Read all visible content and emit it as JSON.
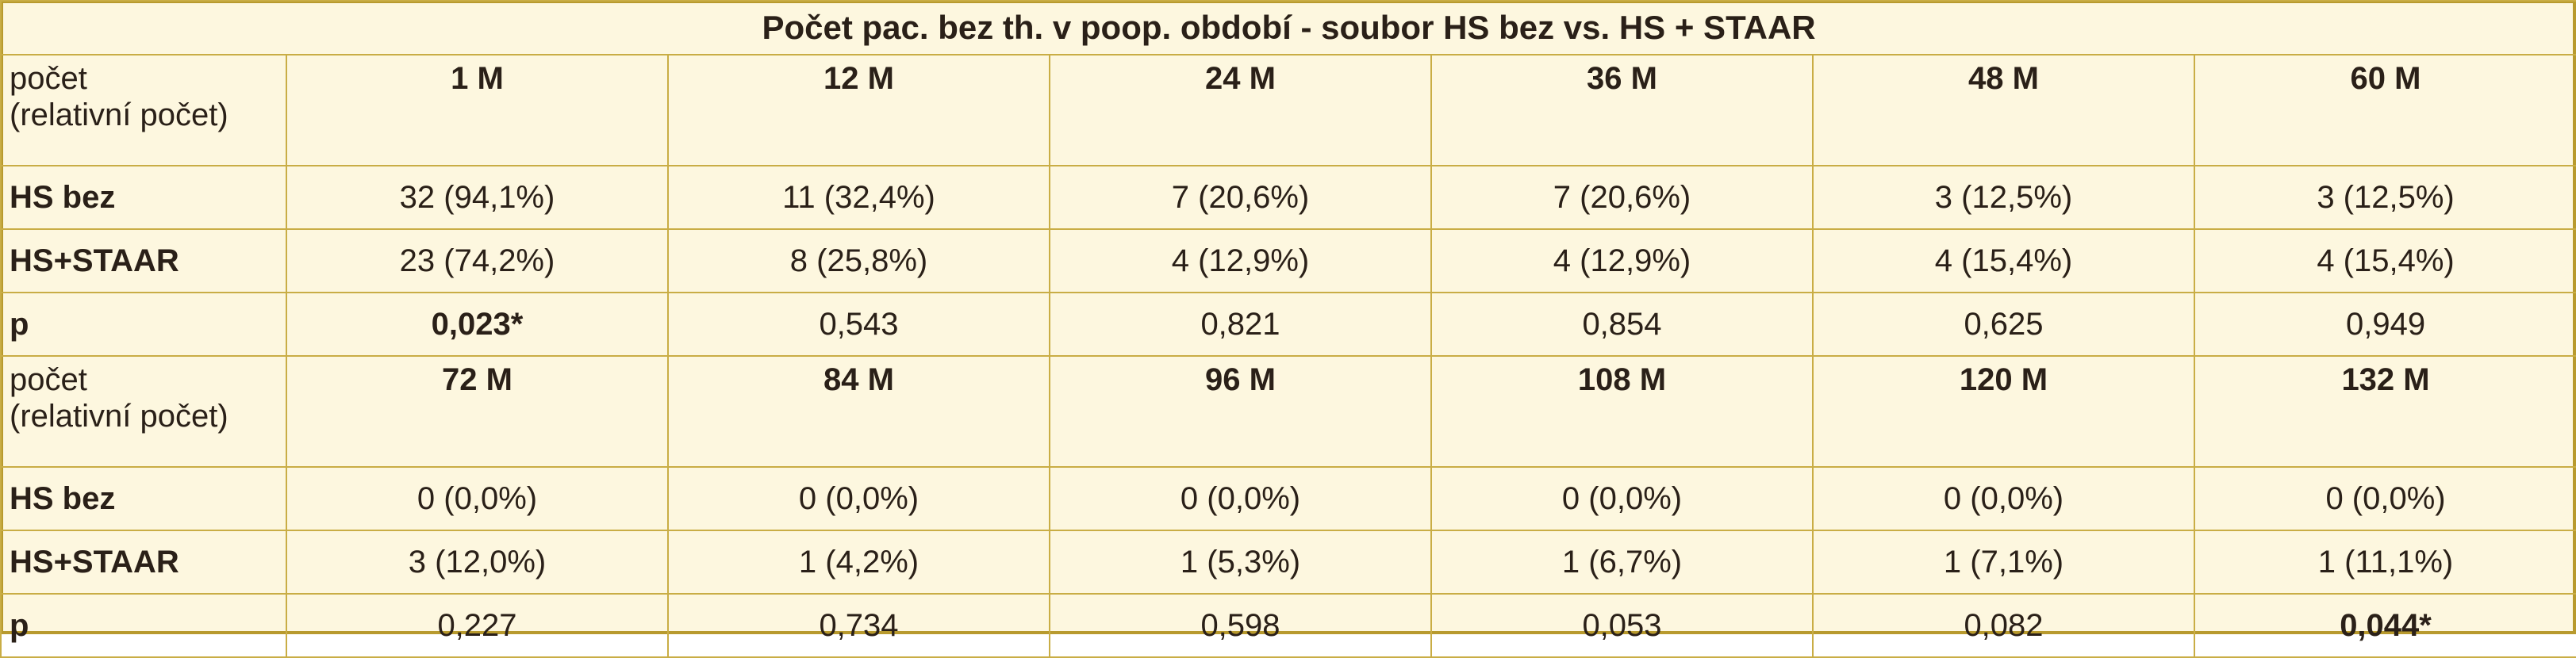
{
  "title": "Počet pac. bez th. v poop. období - soubor HS bez vs. HS + STAAR",
  "blocks": [
    {
      "header": {
        "label_line1": "počet",
        "label_line2": "(relativní počet)",
        "months": [
          "1 M",
          "12 M",
          "24 M",
          "36 M",
          "48 M",
          "60 M"
        ]
      },
      "rows": [
        {
          "label": "HS bez",
          "values": [
            "32 (94,1%)",
            "11 (32,4%)",
            "7 (20,6%)",
            "7 (20,6%)",
            "3 (12,5%)",
            "3 (12,5%)"
          ]
        },
        {
          "label": "HS+STAAR",
          "values": [
            "23 (74,2%)",
            "8 (25,8%)",
            "4 (12,9%)",
            "4 (12,9%)",
            "4 (15,4%)",
            "4 (15,4%)"
          ]
        },
        {
          "label": "p",
          "values": [
            "0,023*",
            "0,543",
            "0,821",
            "0,854",
            "0,625",
            "0,949"
          ],
          "bold_index": 0
        }
      ]
    },
    {
      "header": {
        "label_line1": "počet",
        "label_line2": "(relativní počet)",
        "months": [
          "72 M",
          "84 M",
          "96 M",
          "108 M",
          "120 M",
          "132 M"
        ]
      },
      "rows": [
        {
          "label": "HS bez",
          "values": [
            "0 (0,0%)",
            "0 (0,0%)",
            "0 (0,0%)",
            "0 (0,0%)",
            "0 (0,0%)",
            "0 (0,0%)"
          ]
        },
        {
          "label": "HS+STAAR",
          "values": [
            "3 (12,0%)",
            "1 (4,2%)",
            "1 (5,3%)",
            "1 (6,7%)",
            "1 (7,1%)",
            "1 (11,1%)"
          ]
        },
        {
          "label": "p",
          "values": [
            "0,227",
            "0,734",
            "0,598",
            "0,053",
            "0,082",
            "0,044*"
          ],
          "bold_index": 5
        }
      ]
    }
  ]
}
